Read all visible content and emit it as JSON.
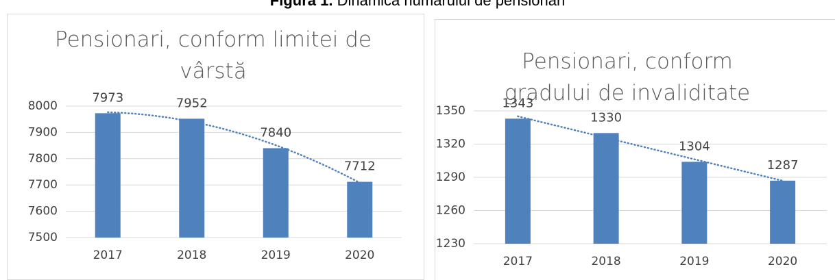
{
  "figure": {
    "label": "Figura 1.",
    "title": "Dinamica numărului de pensionari"
  },
  "chart_data": [
    {
      "type": "bar",
      "title": "Pensionari, conform limitei de vârstă",
      "categories": [
        "2017",
        "2018",
        "2019",
        "2020"
      ],
      "values": [
        7973,
        7952,
        7840,
        7712
      ],
      "color": "#4f81bd",
      "ylim": [
        7500,
        8000
      ],
      "yticks": [
        7500,
        7600,
        7700,
        7800,
        7900,
        8000
      ],
      "grid": true,
      "trendline": "polynomial"
    },
    {
      "type": "bar",
      "title": "Pensionari, conform gradului de invaliditate",
      "categories": [
        "2017",
        "2018",
        "2019",
        "2020"
      ],
      "values": [
        1343,
        1330,
        1304,
        1287
      ],
      "color": "#4f81bd",
      "ylim": [
        1230,
        1350
      ],
      "yticks": [
        1230,
        1260,
        1290,
        1320,
        1350
      ],
      "grid": true,
      "trendline": "linear"
    }
  ]
}
